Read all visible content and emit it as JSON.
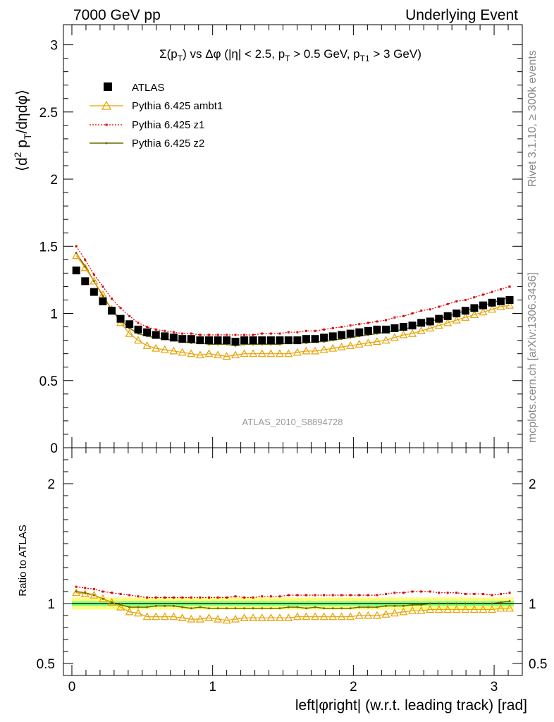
{
  "header": {
    "left": "7000 GeV pp",
    "right": "Underlying Event"
  },
  "side": {
    "rivet": "Rivet 3.1.10, ≥ 300k events",
    "mcplots": "mcplots.cern.ch [arXiv:1306.3436]"
  },
  "watermark": "ATLAS_2010_S8894728",
  "colors": {
    "atlas": "#000000",
    "ambt1": "#e8a000",
    "z1": "#e00000",
    "z2": "#6b6b00",
    "band_inner": "#80ff80",
    "band_outer": "#ffff80"
  },
  "chart_data": [
    {
      "type": "scatter",
      "title": "Σ(p_T) vs Δφ (|η| < 2.5, p_T > 0.5 GeV, p_T1 > 3 GeV)",
      "ylabel": "⟨d² p_T/dηdφ⟩",
      "xlim": [
        -0.06,
        3.2
      ],
      "ylim": [
        0,
        3.15
      ],
      "yticks": [
        "0",
        "0.5",
        "1",
        "1.5",
        "2",
        "2.5",
        "3"
      ],
      "x": [
        0.031,
        0.094,
        0.157,
        0.22,
        0.283,
        0.346,
        0.409,
        0.471,
        0.534,
        0.597,
        0.66,
        0.723,
        0.785,
        0.848,
        0.911,
        0.974,
        1.037,
        1.1,
        1.162,
        1.225,
        1.288,
        1.351,
        1.414,
        1.477,
        1.539,
        1.602,
        1.665,
        1.728,
        1.791,
        1.854,
        1.916,
        1.979,
        2.042,
        2.105,
        2.168,
        2.231,
        2.293,
        2.356,
        2.419,
        2.482,
        2.545,
        2.608,
        2.67,
        2.733,
        2.796,
        2.859,
        2.922,
        2.985,
        3.047,
        3.11
      ],
      "series": [
        {
          "name": "ATLAS",
          "values": [
            1.32,
            1.24,
            1.16,
            1.09,
            1.02,
            0.96,
            0.92,
            0.88,
            0.86,
            0.84,
            0.83,
            0.82,
            0.81,
            0.81,
            0.8,
            0.8,
            0.8,
            0.8,
            0.79,
            0.8,
            0.8,
            0.8,
            0.8,
            0.8,
            0.8,
            0.8,
            0.81,
            0.81,
            0.82,
            0.83,
            0.84,
            0.85,
            0.86,
            0.87,
            0.88,
            0.88,
            0.89,
            0.9,
            0.91,
            0.93,
            0.94,
            0.96,
            0.98,
            1.0,
            1.02,
            1.04,
            1.06,
            1.08,
            1.09,
            1.1
          ]
        },
        {
          "name": "Pythia 6.425 ambt1",
          "values": [
            1.43,
            1.34,
            1.24,
            1.14,
            1.03,
            0.93,
            0.85,
            0.8,
            0.76,
            0.74,
            0.73,
            0.72,
            0.71,
            0.7,
            0.69,
            0.7,
            0.69,
            0.68,
            0.69,
            0.7,
            0.7,
            0.7,
            0.7,
            0.7,
            0.7,
            0.71,
            0.72,
            0.72,
            0.73,
            0.74,
            0.75,
            0.76,
            0.77,
            0.78,
            0.79,
            0.8,
            0.82,
            0.84,
            0.85,
            0.87,
            0.89,
            0.91,
            0.93,
            0.95,
            0.97,
            0.99,
            1.01,
            1.03,
            1.05,
            1.06
          ]
        },
        {
          "name": "Pythia 6.425 z1",
          "values": [
            1.5,
            1.4,
            1.29,
            1.2,
            1.11,
            1.04,
            0.98,
            0.93,
            0.9,
            0.88,
            0.87,
            0.86,
            0.85,
            0.85,
            0.84,
            0.84,
            0.84,
            0.84,
            0.84,
            0.84,
            0.84,
            0.85,
            0.85,
            0.85,
            0.86,
            0.86,
            0.87,
            0.87,
            0.88,
            0.89,
            0.9,
            0.91,
            0.92,
            0.93,
            0.94,
            0.95,
            0.97,
            0.98,
            1.0,
            1.02,
            1.03,
            1.05,
            1.07,
            1.09,
            1.1,
            1.12,
            1.14,
            1.16,
            1.18,
            1.2
          ]
        },
        {
          "name": "Pythia 6.425 z2",
          "values": [
            1.45,
            1.35,
            1.24,
            1.13,
            1.03,
            0.95,
            0.89,
            0.85,
            0.83,
            0.82,
            0.81,
            0.8,
            0.79,
            0.78,
            0.78,
            0.77,
            0.77,
            0.77,
            0.76,
            0.77,
            0.77,
            0.77,
            0.77,
            0.77,
            0.78,
            0.78,
            0.78,
            0.79,
            0.79,
            0.8,
            0.81,
            0.82,
            0.83,
            0.84,
            0.85,
            0.86,
            0.87,
            0.88,
            0.9,
            0.92,
            0.94,
            0.96,
            0.98,
            1.0,
            1.02,
            1.04,
            1.06,
            1.08,
            1.1,
            1.12
          ]
        }
      ]
    },
    {
      "type": "line",
      "ylabel": "Ratio to ATLAS",
      "xlabel": "left|φright| (w.r.t. leading track) [rad]",
      "xlim": [
        -0.06,
        3.2
      ],
      "ylim": [
        0.4,
        2.3
      ],
      "yticks": [
        "0.5",
        "1",
        "2"
      ],
      "xticks": [
        "0",
        "1",
        "2",
        "3"
      ],
      "band": {
        "inner": 0.02,
        "outer": 0.05
      },
      "series": [
        {
          "name": "Pythia 6.425 ambt1",
          "values": [
            1.09,
            1.08,
            1.07,
            1.04,
            1.01,
            0.97,
            0.93,
            0.92,
            0.89,
            0.89,
            0.89,
            0.89,
            0.88,
            0.87,
            0.87,
            0.88,
            0.87,
            0.86,
            0.87,
            0.88,
            0.88,
            0.88,
            0.88,
            0.88,
            0.88,
            0.89,
            0.89,
            0.89,
            0.89,
            0.89,
            0.89,
            0.89,
            0.9,
            0.9,
            0.9,
            0.91,
            0.92,
            0.93,
            0.94,
            0.94,
            0.95,
            0.95,
            0.95,
            0.95,
            0.95,
            0.95,
            0.95,
            0.95,
            0.96,
            0.96
          ]
        },
        {
          "name": "Pythia 6.425 z1",
          "values": [
            1.14,
            1.13,
            1.12,
            1.1,
            1.09,
            1.08,
            1.07,
            1.06,
            1.05,
            1.05,
            1.05,
            1.05,
            1.05,
            1.05,
            1.05,
            1.05,
            1.05,
            1.05,
            1.06,
            1.05,
            1.05,
            1.06,
            1.06,
            1.06,
            1.07,
            1.07,
            1.07,
            1.07,
            1.07,
            1.07,
            1.07,
            1.07,
            1.07,
            1.07,
            1.07,
            1.08,
            1.09,
            1.09,
            1.1,
            1.1,
            1.1,
            1.09,
            1.09,
            1.09,
            1.08,
            1.08,
            1.08,
            1.07,
            1.08,
            1.09
          ]
        },
        {
          "name": "Pythia 6.425 z2",
          "values": [
            1.1,
            1.09,
            1.07,
            1.04,
            1.01,
            0.99,
            0.97,
            0.97,
            0.97,
            0.98,
            0.98,
            0.98,
            0.97,
            0.96,
            0.97,
            0.96,
            0.96,
            0.96,
            0.96,
            0.96,
            0.96,
            0.96,
            0.96,
            0.96,
            0.97,
            0.97,
            0.96,
            0.97,
            0.96,
            0.96,
            0.96,
            0.96,
            0.97,
            0.97,
            0.97,
            0.98,
            0.98,
            0.98,
            0.99,
            0.99,
            1.0,
            1.0,
            1.0,
            1.0,
            1.0,
            1.0,
            1.0,
            1.0,
            1.01,
            1.02
          ]
        }
      ]
    }
  ]
}
